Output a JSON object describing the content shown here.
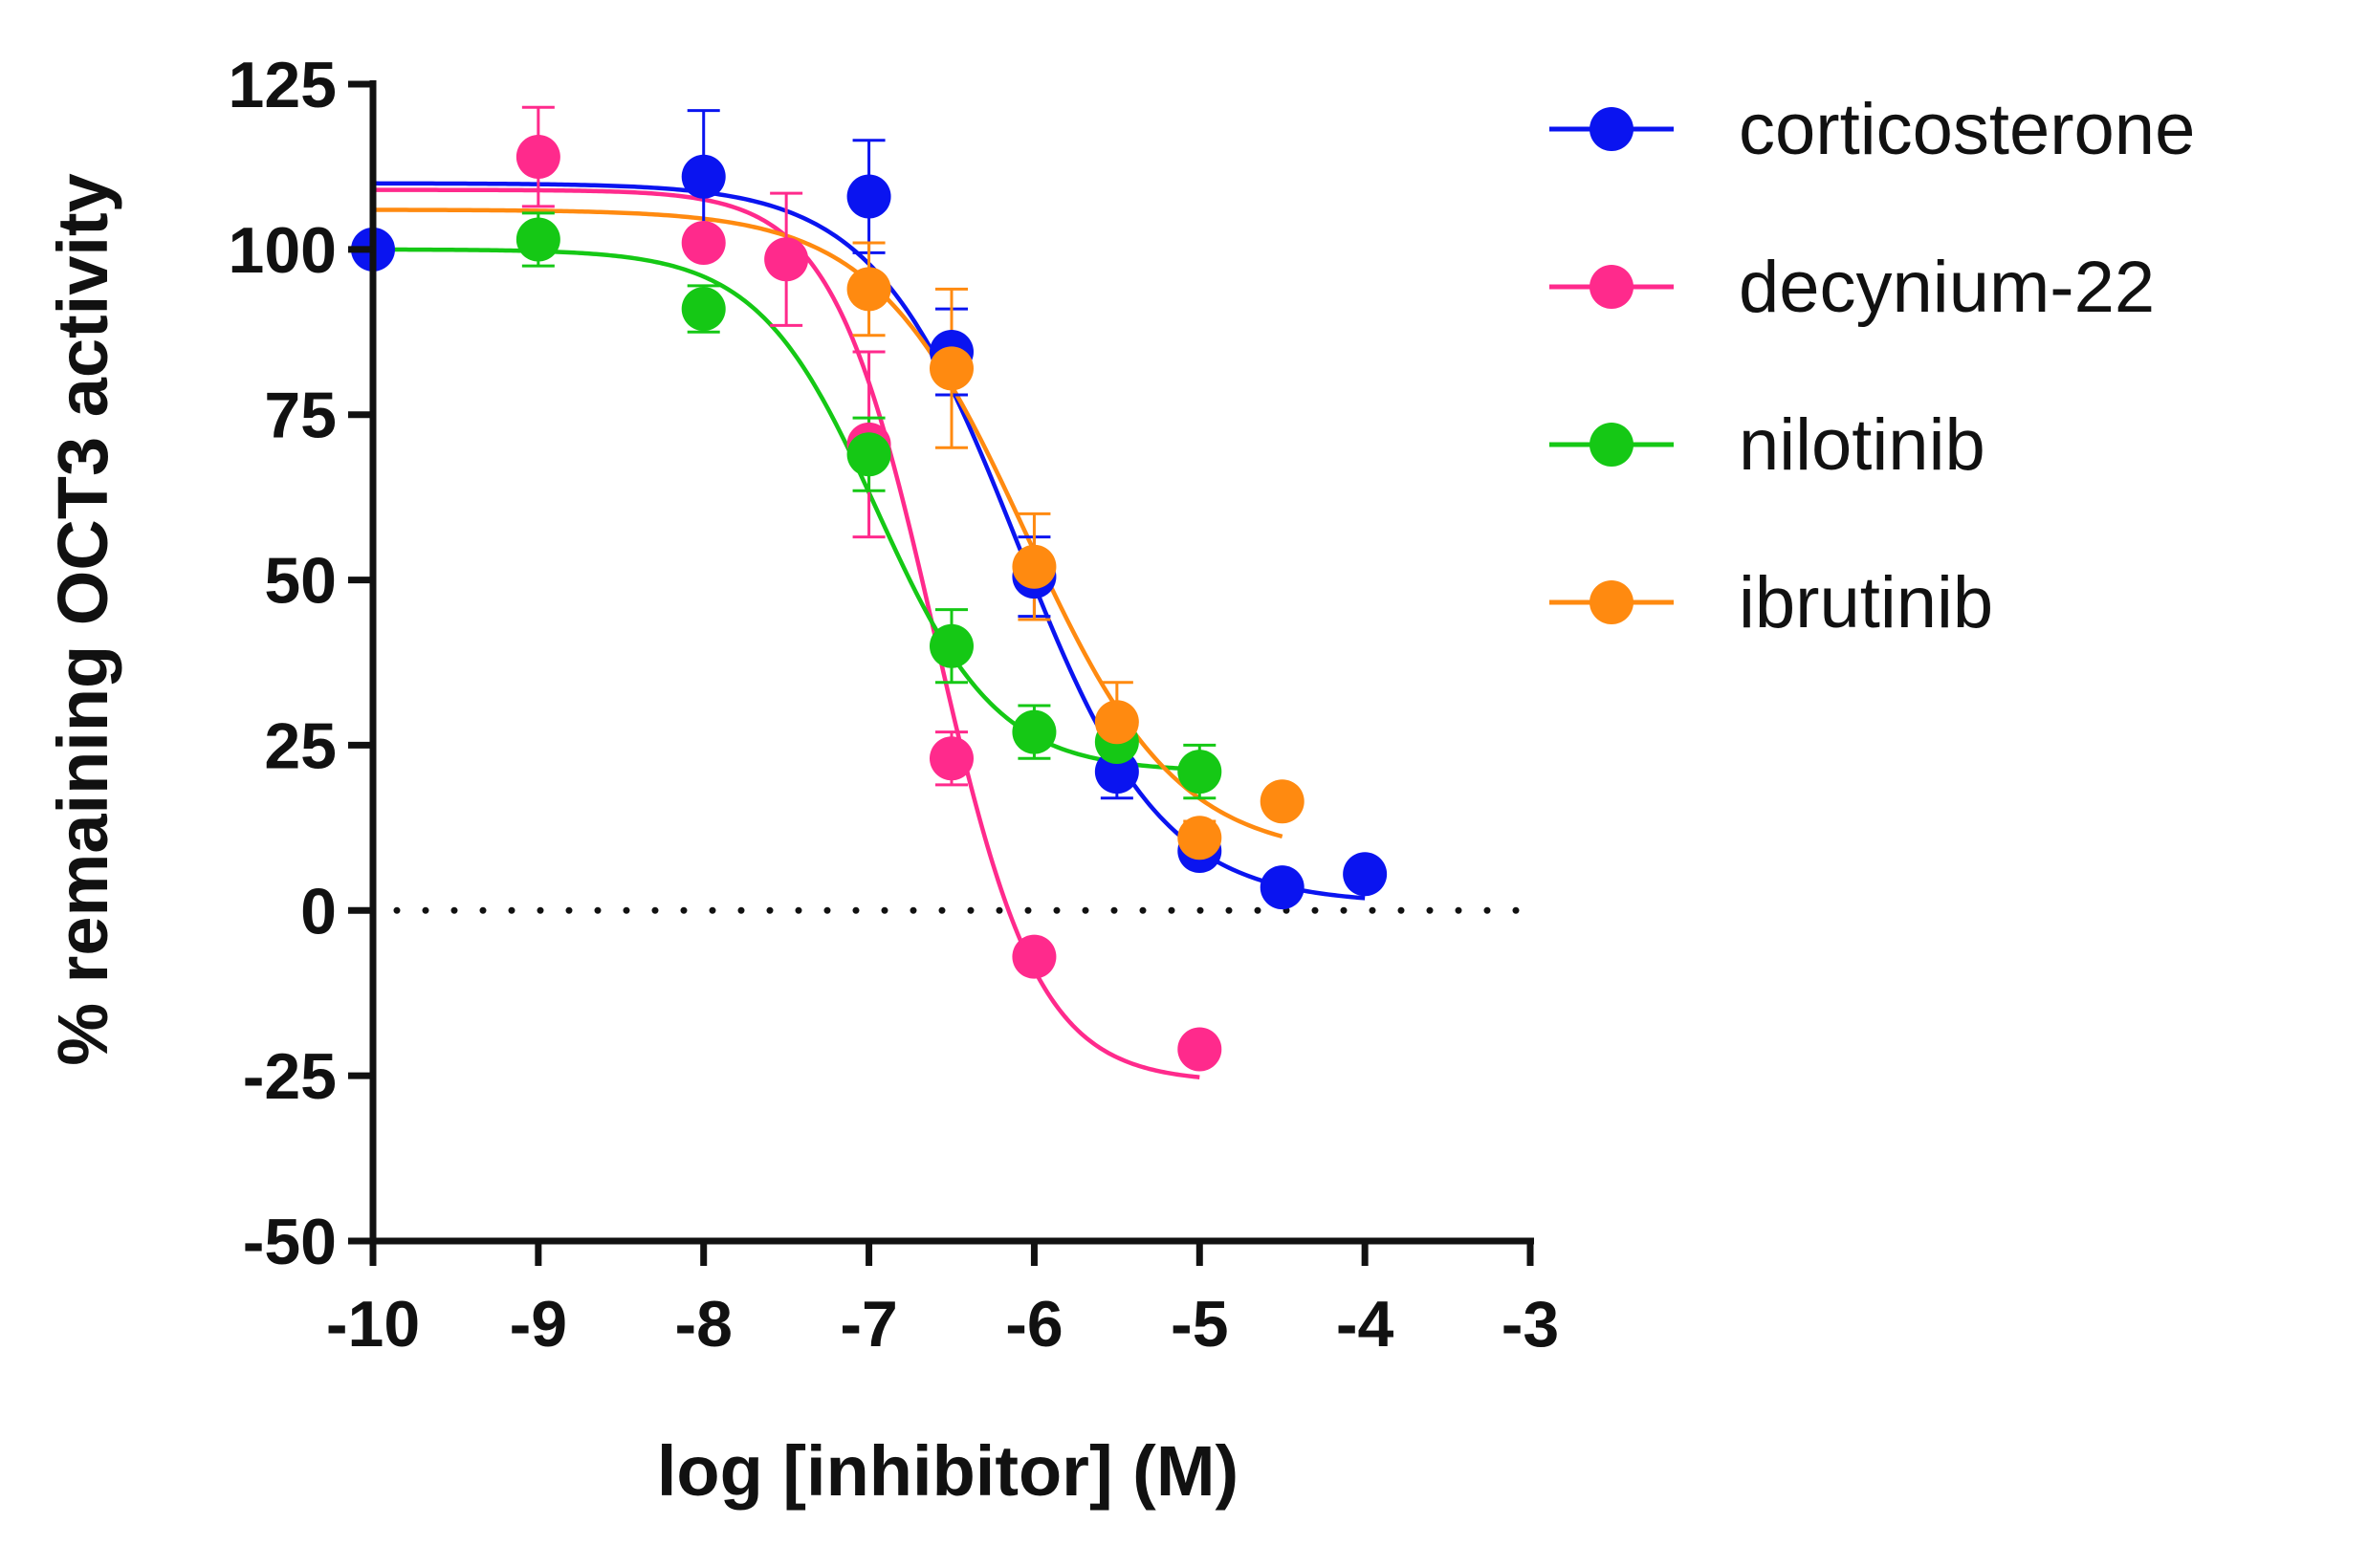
{
  "chart_data": {
    "type": "scatter",
    "xlabel": "log [inhibitor] (M)",
    "ylabel": "% remaining OCT3 activity",
    "xlim": [
      -10,
      -3
    ],
    "ylim": [
      -50,
      125
    ],
    "xticks": [
      -10,
      -9,
      -8,
      -7,
      -6,
      -5,
      -4,
      -3
    ],
    "xtick_labels": [
      "-10",
      "-9",
      "-8",
      "-7",
      "-6",
      "-5",
      "-4",
      "-3"
    ],
    "yticks": [
      -50,
      -25,
      0,
      25,
      50,
      75,
      100,
      125
    ],
    "ytick_labels": [
      "-50",
      "-25",
      "0",
      "25",
      "50",
      "75",
      "100",
      "125"
    ],
    "reference_line": {
      "y": 0,
      "style": "dotted"
    },
    "legend_position": "top-right",
    "series": [
      {
        "name": "corticosterone",
        "color": "#0a14f0",
        "points": [
          {
            "x": -10,
            "y": 100,
            "err": 0
          },
          {
            "x": -8,
            "y": 111,
            "err": 10
          },
          {
            "x": -7,
            "y": 108,
            "err": 8.5
          },
          {
            "x": -6.5,
            "y": 84.5,
            "err": 6.5
          },
          {
            "x": -6,
            "y": 50.5,
            "err": 6
          },
          {
            "x": -5.5,
            "y": 21,
            "err": 4
          },
          {
            "x": -5,
            "y": 9,
            "err": 2
          },
          {
            "x": -4.5,
            "y": 3.5,
            "err": 1.5
          },
          {
            "x": -4,
            "y": 5.5,
            "err": 1.5
          }
        ],
        "fit": {
          "top": 110,
          "bottom": 1,
          "logIC50": -6.1,
          "hill": -1.0,
          "x_range": [
            -10,
            -4
          ]
        }
      },
      {
        "name": "decynium-22",
        "color": "#ff2a8c",
        "points": [
          {
            "x": -9,
            "y": 114,
            "err": 7.5
          },
          {
            "x": -8,
            "y": 101,
            "err": 1.5
          },
          {
            "x": -7.5,
            "y": 98.5,
            "err": 10
          },
          {
            "x": -7,
            "y": 70.5,
            "err": 14
          },
          {
            "x": -6.5,
            "y": 23,
            "err": 4
          },
          {
            "x": -6,
            "y": -7,
            "err": 1.5
          },
          {
            "x": -5,
            "y": -21,
            "err": 1.5
          }
        ],
        "fit": {
          "top": 109,
          "bottom": -26,
          "logIC50": -6.6,
          "hill": -1.4,
          "x_range": [
            -10,
            -5
          ]
        }
      },
      {
        "name": "nilotinib",
        "color": "#15c815",
        "points": [
          {
            "x": -9,
            "y": 101.5,
            "err": 4
          },
          {
            "x": -8,
            "y": 91,
            "err": 3.5
          },
          {
            "x": -7,
            "y": 69,
            "err": 5.5
          },
          {
            "x": -6.5,
            "y": 40,
            "err": 5.5
          },
          {
            "x": -6,
            "y": 27,
            "err": 4
          },
          {
            "x": -5.5,
            "y": 25.5,
            "err": 3.5
          },
          {
            "x": -5,
            "y": 21,
            "err": 4
          }
        ],
        "fit": {
          "top": 100,
          "bottom": 21,
          "logIC50": -6.95,
          "hill": -1.2,
          "x_range": [
            -10,
            -5
          ]
        }
      },
      {
        "name": "ibrutinib",
        "color": "#ff8a10",
        "points": [
          {
            "x": -7,
            "y": 94,
            "err": 7
          },
          {
            "x": -6.5,
            "y": 82,
            "err": 12
          },
          {
            "x": -6,
            "y": 52,
            "err": 8
          },
          {
            "x": -5.5,
            "y": 28.5,
            "err": 6
          },
          {
            "x": -5,
            "y": 11,
            "err": 2.5
          },
          {
            "x": -4.5,
            "y": 16.5,
            "err": 2
          }
        ],
        "fit": {
          "top": 106,
          "bottom": 8,
          "logIC50": -6.05,
          "hill": -0.95,
          "x_range": [
            -10,
            -4.5
          ]
        }
      }
    ]
  }
}
